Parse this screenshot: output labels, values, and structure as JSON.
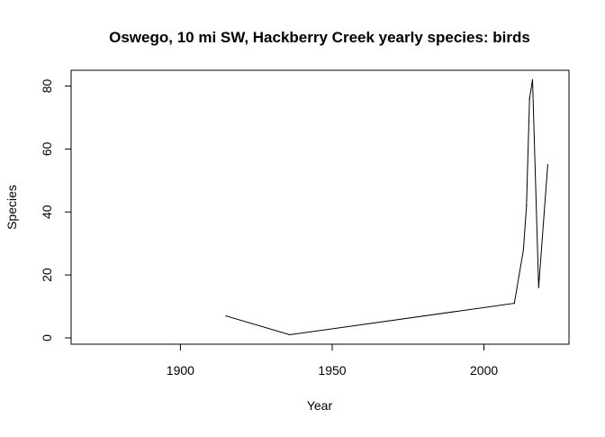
{
  "chart_data": {
    "type": "line",
    "title": "Oswego, 10 mi SW, Hackberry Creek yearly species: birds",
    "xlabel": "Year",
    "ylabel": "Species",
    "xlim": [
      1864,
      2028
    ],
    "ylim": [
      -2,
      85
    ],
    "x_ticks": [
      1900,
      1950,
      2000
    ],
    "y_ticks": [
      0,
      20,
      40,
      60,
      80
    ],
    "grid": false,
    "legend": "none",
    "line_color": "#000000",
    "series": [
      {
        "x": [
          1915,
          1936,
          2010,
          2013,
          2014,
          2015,
          2016,
          2018,
          2021
        ],
        "y": [
          7,
          1,
          11,
          28,
          42,
          76,
          82,
          16,
          55
        ]
      }
    ]
  }
}
